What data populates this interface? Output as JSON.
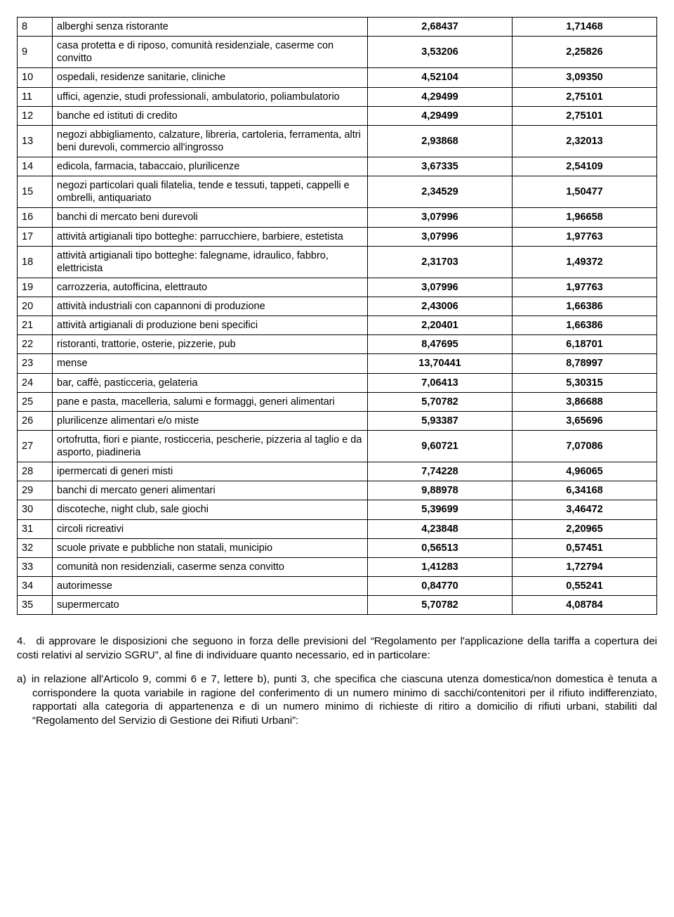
{
  "table": {
    "colwidths": {
      "num": 50,
      "val": 206
    },
    "rows": [
      {
        "n": "8",
        "desc": "alberghi senza ristorante",
        "v1": "2,68437",
        "v2": "1,71468"
      },
      {
        "n": "9",
        "desc": "casa protetta e di riposo, comunità residenziale, caserme con convitto",
        "v1": "3,53206",
        "v2": "2,25826"
      },
      {
        "n": "10",
        "desc": "ospedali, residenze sanitarie, cliniche",
        "v1": "4,52104",
        "v2": "3,09350"
      },
      {
        "n": "11",
        "desc": "uffici, agenzie, studi professionali, ambulatorio, poliambulatorio",
        "v1": "4,29499",
        "v2": "2,75101"
      },
      {
        "n": "12",
        "desc": "banche ed istituti di credito",
        "v1": "4,29499",
        "v2": "2,75101"
      },
      {
        "n": "13",
        "desc": "negozi abbigliamento, calzature, libreria, cartoleria, ferramenta, altri beni durevoli, commercio all'ingrosso",
        "v1": "2,93868",
        "v2": "2,32013"
      },
      {
        "n": "14",
        "desc": "edicola, farmacia, tabaccaio, plurilicenze",
        "v1": "3,67335",
        "v2": "2,54109"
      },
      {
        "n": "15",
        "desc": "negozi particolari quali filatelia, tende e tessuti, tappeti, cappelli e ombrelli, antiquariato",
        "v1": "2,34529",
        "v2": "1,50477"
      },
      {
        "n": "16",
        "desc": "banchi di mercato beni durevoli",
        "v1": "3,07996",
        "v2": "1,96658"
      },
      {
        "n": "17",
        "desc": "attività artigianali tipo botteghe: parrucchiere, barbiere, estetista",
        "v1": "3,07996",
        "v2": "1,97763"
      },
      {
        "n": "18",
        "desc": "attività artigianali tipo botteghe: falegname, idraulico, fabbro, elettricista",
        "v1": "2,31703",
        "v2": "1,49372"
      },
      {
        "n": "19",
        "desc": "carrozzeria, autofficina, elettrauto",
        "v1": "3,07996",
        "v2": "1,97763"
      },
      {
        "n": "20",
        "desc": "attività industriali con capannoni di produzione",
        "v1": "2,43006",
        "v2": "1,66386"
      },
      {
        "n": "21",
        "desc": "attività artigianali di produzione beni specifici",
        "v1": "2,20401",
        "v2": "1,66386"
      },
      {
        "n": "22",
        "desc": "ristoranti, trattorie, osterie, pizzerie, pub",
        "v1": "8,47695",
        "v2": "6,18701"
      },
      {
        "n": "23",
        "desc": "mense",
        "v1": "13,70441",
        "v2": "8,78997"
      },
      {
        "n": "24",
        "desc": "bar, caffè, pasticceria, gelateria",
        "v1": "7,06413",
        "v2": "5,30315"
      },
      {
        "n": "25",
        "desc": "pane e pasta, macelleria, salumi e formaggi, generi alimentari",
        "v1": "5,70782",
        "v2": "3,86688"
      },
      {
        "n": "26",
        "desc": "plurilicenze alimentari e/o miste",
        "v1": "5,93387",
        "v2": "3,65696"
      },
      {
        "n": "27",
        "desc": "ortofrutta,  fiori e piante, rosticceria, pescherie, pizzeria al taglio e da asporto, piadineria",
        "v1": "9,60721",
        "v2": "7,07086"
      },
      {
        "n": "28",
        "desc": "ipermercati di generi misti",
        "v1": "7,74228",
        "v2": "4,96065"
      },
      {
        "n": "29",
        "desc": "banchi di mercato generi alimentari",
        "v1": "9,88978",
        "v2": "6,34168"
      },
      {
        "n": "30",
        "desc": "discoteche, night club, sale giochi",
        "v1": "5,39699",
        "v2": "3,46472"
      },
      {
        "n": "31",
        "desc": "circoli ricreativi",
        "v1": "4,23848",
        "v2": "2,20965"
      },
      {
        "n": "32",
        "desc": "scuole private e pubbliche non statali, municipio",
        "v1": "0,56513",
        "v2": "0,57451"
      },
      {
        "n": "33",
        "desc": "comunità non residenziali, caserme senza convitto",
        "v1": "1,41283",
        "v2": "1,72794"
      },
      {
        "n": "34",
        "desc": "autorimesse",
        "v1": "0,84770",
        "v2": "0,55241"
      },
      {
        "n": "35",
        "desc": "supermercato",
        "v1": "5,70782",
        "v2": "4,08784"
      }
    ]
  },
  "para4": "4. di approvare le disposizioni che seguono in forza delle previsioni del “Regolamento per l'applicazione della tariffa a copertura dei costi relativi al servizio SGRU”, al fine di individuare quanto necessario, ed in particolare:",
  "para_a": "a) in relazione all'Articolo 9, commi 6 e 7, lettere b), punti 3, che specifica che ciascuna utenza domestica/non domestica è tenuta a corrispondere la quota variabile in ragione del conferimento di un numero minimo di sacchi/contenitori per il rifiuto indifferenziato, rapportati alla categoria di appartenenza e di un numero minimo di richieste di ritiro a domicilio di rifiuti urbani, stabiliti dal “Regolamento del Servizio di Gestione dei Rifiuti Urbani”:"
}
